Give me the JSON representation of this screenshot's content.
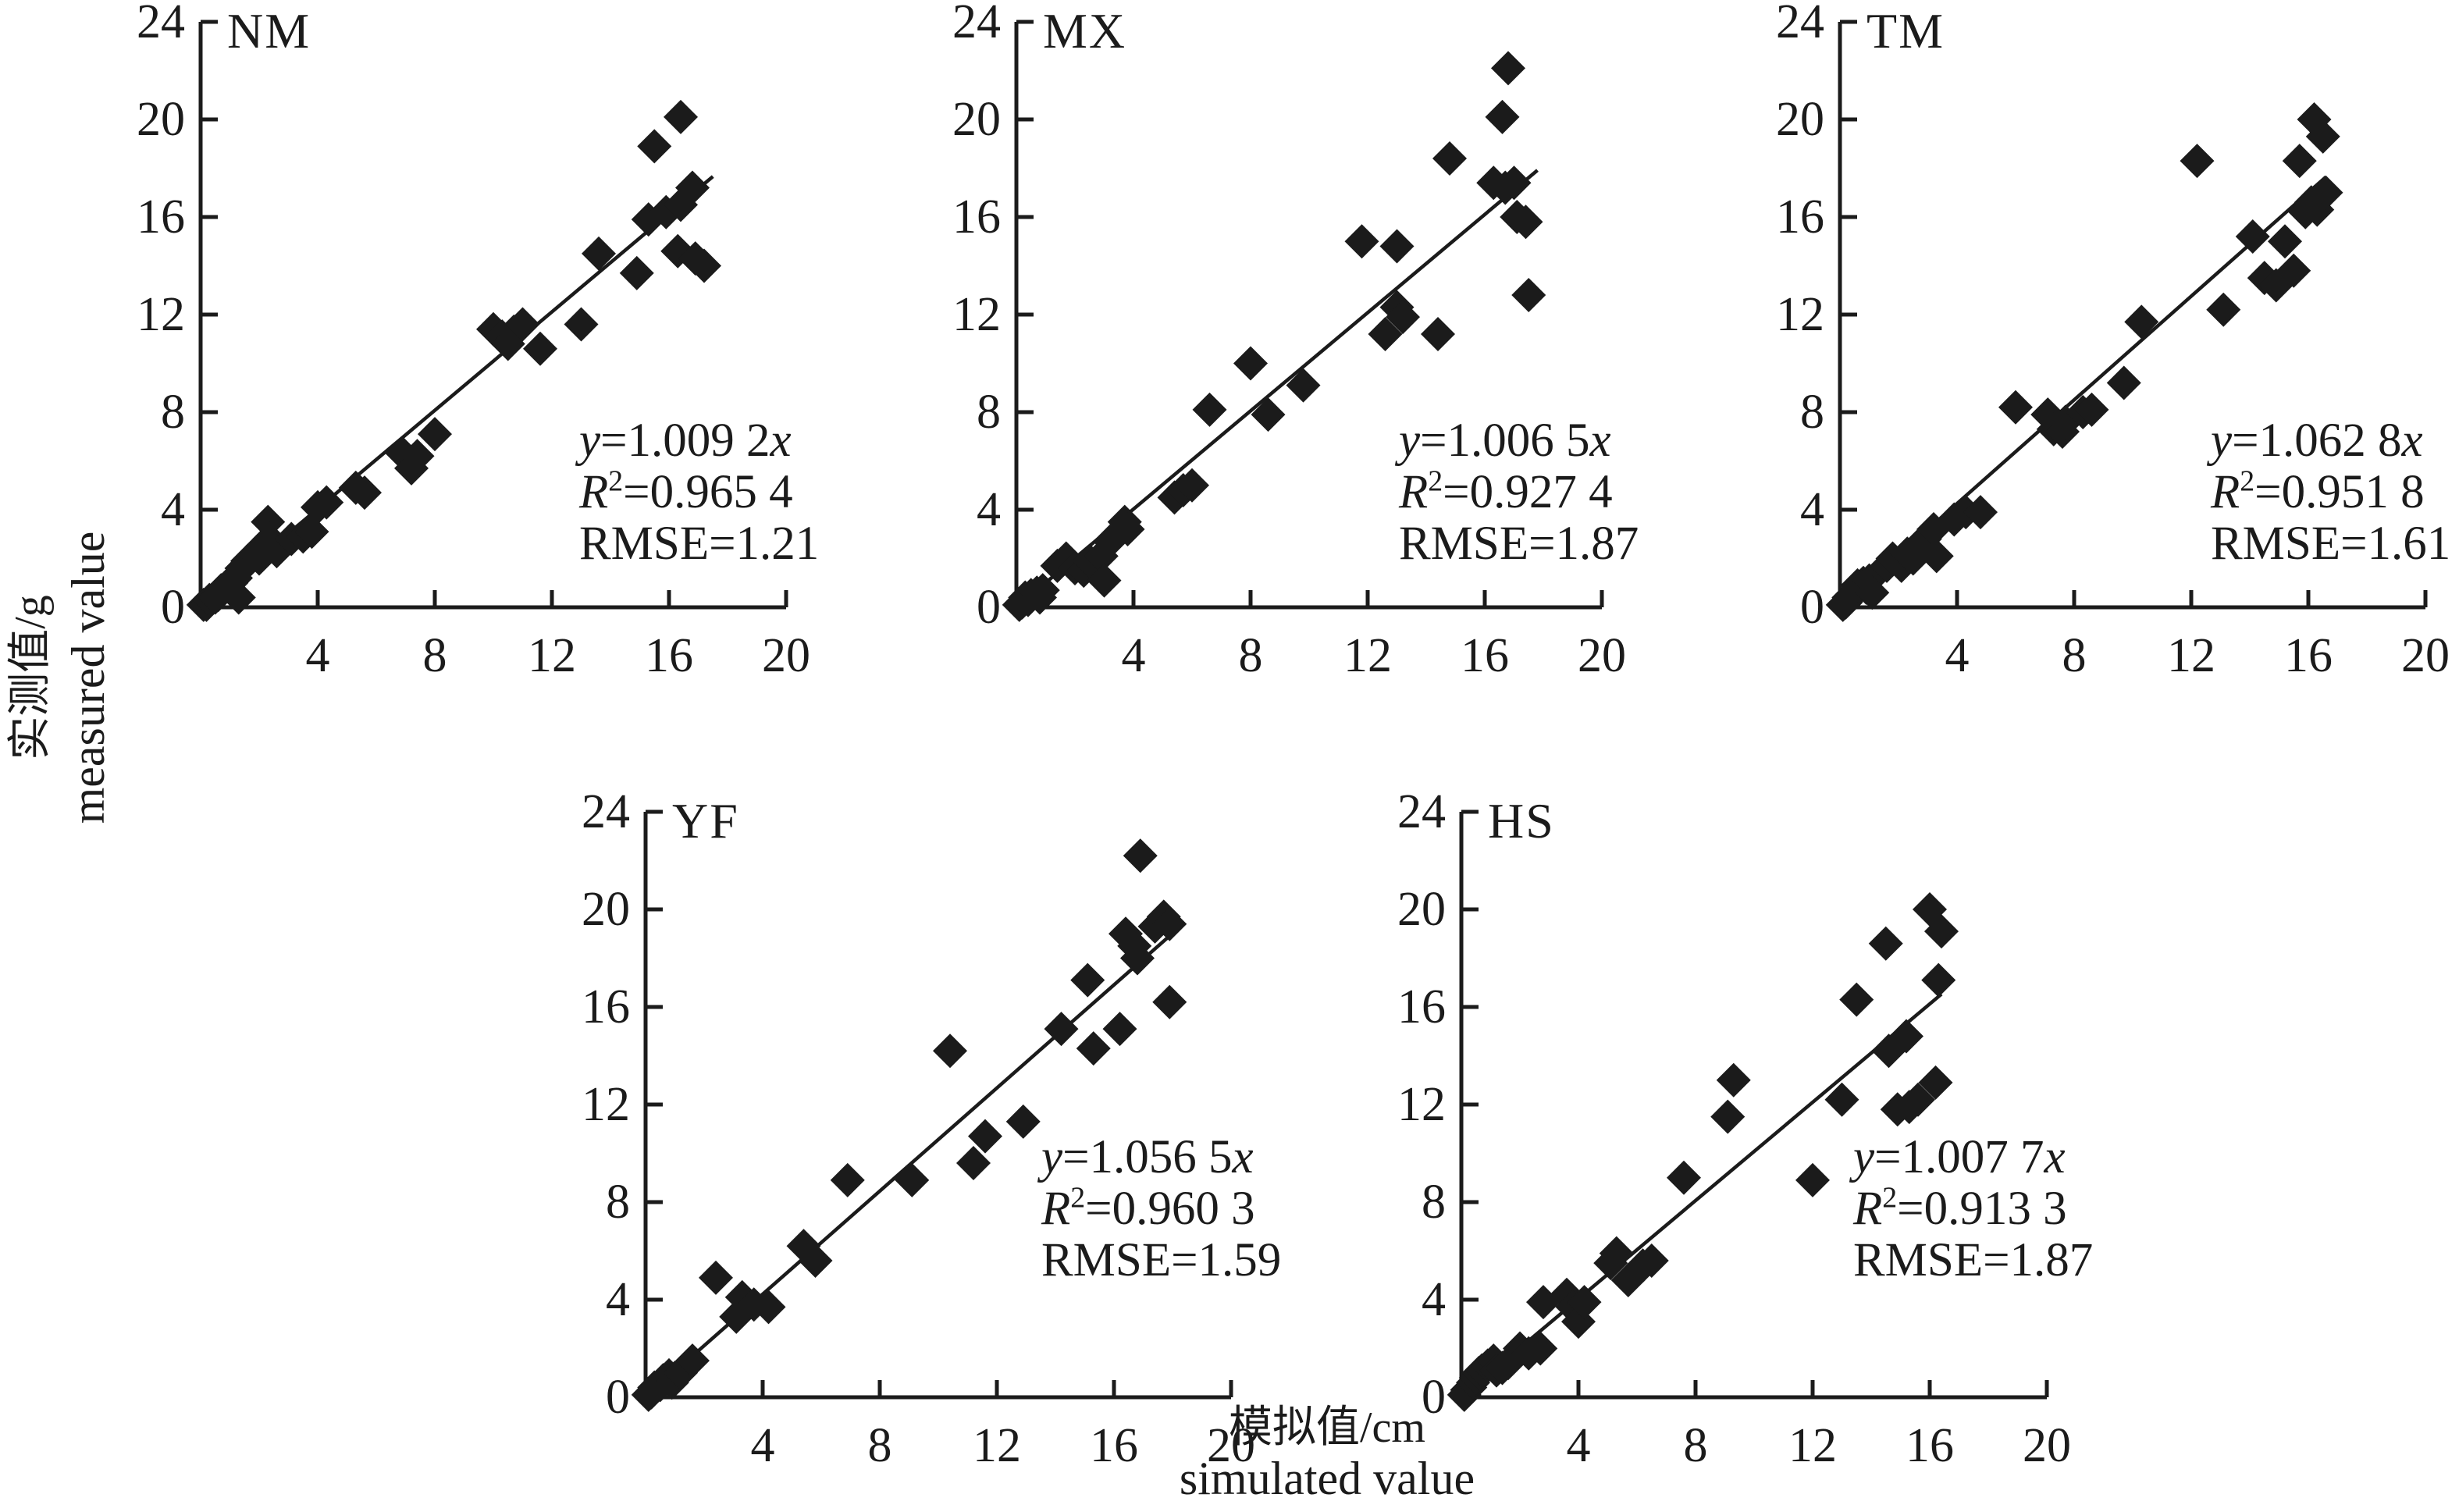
{
  "figure": {
    "ink_color": "#1b1b1b",
    "background": "#ffffff",
    "y_axis_label": {
      "cn": "实测值/g",
      "en": "measured value"
    },
    "x_axis_label": {
      "cn": "模拟值/cm",
      "en": "simulated value"
    }
  },
  "chart_data": [
    {
      "type": "scatter",
      "panel": "NM",
      "marker": "diamond",
      "xlim": [
        0,
        20
      ],
      "ylim": [
        0,
        24
      ],
      "x_ticks": [
        4,
        8,
        12,
        16,
        20
      ],
      "y_ticks": [
        0,
        4,
        8,
        12,
        16,
        20,
        24
      ],
      "fit_line": {
        "slope": 1.0092,
        "x_start": 0,
        "x_end": 17.5
      },
      "stats": {
        "eq_y": "y",
        "eq_val": "=1.009 2",
        "eq_x": "x",
        "R": "R",
        "R_sup": "2",
        "R_val": "=0.965 4",
        "rmse": "RMSE=1.21"
      },
      "points": [
        [
          0.1,
          0.1
        ],
        [
          0.2,
          0.1
        ],
        [
          0.3,
          0.3
        ],
        [
          0.5,
          0.4
        ],
        [
          0.6,
          0.5
        ],
        [
          0.7,
          0.7
        ],
        [
          0.9,
          0.9
        ],
        [
          1.05,
          1.0
        ],
        [
          1.2,
          1.2
        ],
        [
          1.3,
          0.4
        ],
        [
          1.4,
          1.6
        ],
        [
          1.6,
          1.9
        ],
        [
          1.8,
          2.1
        ],
        [
          2.0,
          2.0
        ],
        [
          2.1,
          2.5
        ],
        [
          2.3,
          3.5
        ],
        [
          2.35,
          2.8
        ],
        [
          2.6,
          2.3
        ],
        [
          3.1,
          2.8
        ],
        [
          3.5,
          2.9
        ],
        [
          3.8,
          3.1
        ],
        [
          4.0,
          4.1
        ],
        [
          4.3,
          4.3
        ],
        [
          5.3,
          4.9
        ],
        [
          5.6,
          4.7
        ],
        [
          6.9,
          6.3
        ],
        [
          7.2,
          5.7
        ],
        [
          7.4,
          6.2
        ],
        [
          8.0,
          7.1
        ],
        [
          10.0,
          11.4
        ],
        [
          10.3,
          11.1
        ],
        [
          10.5,
          10.8
        ],
        [
          10.7,
          11.3
        ],
        [
          11.0,
          11.6
        ],
        [
          11.6,
          10.6
        ],
        [
          13.0,
          11.6
        ],
        [
          13.6,
          14.5
        ],
        [
          14.9,
          13.7
        ],
        [
          15.3,
          15.9
        ],
        [
          15.5,
          18.9
        ],
        [
          15.9,
          16.2
        ],
        [
          16.3,
          14.6
        ],
        [
          16.4,
          16.5
        ],
        [
          16.4,
          20.1
        ],
        [
          16.8,
          17.2
        ],
        [
          16.9,
          14.3
        ],
        [
          17.2,
          14.0
        ]
      ]
    },
    {
      "type": "scatter",
      "panel": "MX",
      "marker": "diamond",
      "xlim": [
        0,
        20
      ],
      "ylim": [
        0,
        24
      ],
      "x_ticks": [
        4,
        8,
        12,
        16,
        20
      ],
      "y_ticks": [
        0,
        4,
        8,
        12,
        16,
        20,
        24
      ],
      "fit_line": {
        "slope": 1.0065,
        "x_start": 0,
        "x_end": 17.8
      },
      "stats": {
        "eq_y": "y",
        "eq_val": "=1.006 5",
        "eq_x": "x",
        "R": "R",
        "R_sup": "2",
        "R_val": "=0.927 4",
        "rmse": "RMSE=1.87"
      },
      "points": [
        [
          0.1,
          0.1
        ],
        [
          0.2,
          0.2
        ],
        [
          0.3,
          0.4
        ],
        [
          0.4,
          0.3
        ],
        [
          0.5,
          0.5
        ],
        [
          0.7,
          0.6
        ],
        [
          0.8,
          0.4
        ],
        [
          0.9,
          0.7
        ],
        [
          1.4,
          1.7
        ],
        [
          1.7,
          2.0
        ],
        [
          2.0,
          1.6
        ],
        [
          2.3,
          1.5
        ],
        [
          2.5,
          1.9
        ],
        [
          2.9,
          2.1
        ],
        [
          3.0,
          1.1
        ],
        [
          3.2,
          2.7
        ],
        [
          3.7,
          3.5
        ],
        [
          3.8,
          3.2
        ],
        [
          5.4,
          4.5
        ],
        [
          5.7,
          4.8
        ],
        [
          6.0,
          5.0
        ],
        [
          6.6,
          8.1
        ],
        [
          8.0,
          10.0
        ],
        [
          8.6,
          7.9
        ],
        [
          9.8,
          9.1
        ],
        [
          11.8,
          15.0
        ],
        [
          13.0,
          14.8
        ],
        [
          12.6,
          11.2
        ],
        [
          13.0,
          12.3
        ],
        [
          13.2,
          11.9
        ],
        [
          14.4,
          11.2
        ],
        [
          14.8,
          18.4
        ],
        [
          16.8,
          22.1
        ],
        [
          16.6,
          20.1
        ],
        [
          16.3,
          17.4
        ],
        [
          16.7,
          17.2
        ],
        [
          17.0,
          17.4
        ],
        [
          17.1,
          16.0
        ],
        [
          17.4,
          15.8
        ],
        [
          17.5,
          12.8
        ]
      ]
    },
    {
      "type": "scatter",
      "panel": "TM",
      "marker": "diamond",
      "xlim": [
        0,
        20
      ],
      "ylim": [
        0,
        24
      ],
      "x_ticks": [
        4,
        8,
        12,
        16,
        20
      ],
      "y_ticks": [
        0,
        4,
        8,
        12,
        16,
        20,
        24
      ],
      "fit_line": {
        "slope": 1.0628,
        "x_start": 0,
        "x_end": 16.6
      },
      "stats": {
        "eq_y": "y",
        "eq_val": "=1.062 8",
        "eq_x": "x",
        "R": "R",
        "R_sup": "2",
        "R_val": "=0.951 8",
        "rmse": "RMSE=1.61"
      },
      "points": [
        [
          0.1,
          0.1
        ],
        [
          0.2,
          0.2
        ],
        [
          0.3,
          0.4
        ],
        [
          0.5,
          0.6
        ],
        [
          0.6,
          0.9
        ],
        [
          0.8,
          1.0
        ],
        [
          0.9,
          0.8
        ],
        [
          1.0,
          1.1
        ],
        [
          1.1,
          0.6
        ],
        [
          1.6,
          1.7
        ],
        [
          1.8,
          2.0
        ],
        [
          2.1,
          1.7
        ],
        [
          2.3,
          2.2
        ],
        [
          2.5,
          2.0
        ],
        [
          2.8,
          2.5
        ],
        [
          2.9,
          2.8
        ],
        [
          3.2,
          3.2
        ],
        [
          3.3,
          2.1
        ],
        [
          3.9,
          3.6
        ],
        [
          4.3,
          3.9
        ],
        [
          4.8,
          3.9
        ],
        [
          6.0,
          8.2
        ],
        [
          7.1,
          7.9
        ],
        [
          7.3,
          7.3
        ],
        [
          7.6,
          7.2
        ],
        [
          7.7,
          7.6
        ],
        [
          8.3,
          8.0
        ],
        [
          8.6,
          8.1
        ],
        [
          9.7,
          9.2
        ],
        [
          10.3,
          11.7
        ],
        [
          12.2,
          18.3
        ],
        [
          13.1,
          12.2
        ],
        [
          14.1,
          15.2
        ],
        [
          14.5,
          13.5
        ],
        [
          14.9,
          13.2
        ],
        [
          15.2,
          15.0
        ],
        [
          15.5,
          13.8
        ],
        [
          15.7,
          18.3
        ],
        [
          15.9,
          16.2
        ],
        [
          16.1,
          16.6
        ],
        [
          16.3,
          16.3
        ],
        [
          16.2,
          20.0
        ],
        [
          16.5,
          19.3
        ],
        [
          16.6,
          17.0
        ]
      ]
    },
    {
      "type": "scatter",
      "panel": "YF",
      "marker": "diamond",
      "xlim": [
        0,
        20
      ],
      "ylim": [
        0,
        24
      ],
      "x_ticks": [
        4,
        8,
        12,
        16,
        20
      ],
      "y_ticks": [
        0,
        4,
        8,
        12,
        16,
        20,
        24
      ],
      "fit_line": {
        "slope": 1.0565,
        "x_start": 0,
        "x_end": 18.3
      },
      "stats": {
        "eq_y": "y",
        "eq_val": "=1.056 5",
        "eq_x": "x",
        "R": "R",
        "R_sup": "2",
        "R_val": "=0.960 3",
        "rmse": "RMSE=1.59"
      },
      "points": [
        [
          0.1,
          0.1
        ],
        [
          0.2,
          0.2
        ],
        [
          0.3,
          0.4
        ],
        [
          0.5,
          0.5
        ],
        [
          0.6,
          0.7
        ],
        [
          0.8,
          0.9
        ],
        [
          0.9,
          0.6
        ],
        [
          1.0,
          0.8
        ],
        [
          1.2,
          1.0
        ],
        [
          1.6,
          1.5
        ],
        [
          2.4,
          4.9
        ],
        [
          3.1,
          3.3
        ],
        [
          3.3,
          4.1
        ],
        [
          3.7,
          3.8
        ],
        [
          4.2,
          3.7
        ],
        [
          5.4,
          6.2
        ],
        [
          5.8,
          5.6
        ],
        [
          6.9,
          8.9
        ],
        [
          9.1,
          8.9
        ],
        [
          10.4,
          14.2
        ],
        [
          11.2,
          9.6
        ],
        [
          11.6,
          10.7
        ],
        [
          12.9,
          11.3
        ],
        [
          14.2,
          15.1
        ],
        [
          15.1,
          17.1
        ],
        [
          15.3,
          14.3
        ],
        [
          16.2,
          15.1
        ],
        [
          16.4,
          19.0
        ],
        [
          16.7,
          18.5
        ],
        [
          16.8,
          18.0
        ],
        [
          17.4,
          19.3
        ],
        [
          17.7,
          19.7
        ],
        [
          17.9,
          19.4
        ],
        [
          16.9,
          22.2
        ],
        [
          17.9,
          16.2
        ]
      ]
    },
    {
      "type": "scatter",
      "panel": "HS",
      "marker": "diamond",
      "xlim": [
        0,
        20
      ],
      "ylim": [
        0,
        24
      ],
      "x_ticks": [
        4,
        8,
        12,
        16,
        20
      ],
      "y_ticks": [
        0,
        4,
        8,
        12,
        16,
        20,
        24
      ],
      "fit_line": {
        "slope": 1.0077,
        "x_start": 0,
        "x_end": 16.4
      },
      "stats": {
        "eq_y": "y",
        "eq_val": "=1.007 7",
        "eq_x": "x",
        "R": "R",
        "R_sup": "2",
        "R_val": "=0.913 3",
        "rmse": "RMSE=1.87"
      },
      "points": [
        [
          0.1,
          0.1
        ],
        [
          0.2,
          0.3
        ],
        [
          0.3,
          0.4
        ],
        [
          0.4,
          0.6
        ],
        [
          0.5,
          0.8
        ],
        [
          0.6,
          1.0
        ],
        [
          0.7,
          1.1
        ],
        [
          0.9,
          1.3
        ],
        [
          1.1,
          1.5
        ],
        [
          1.2,
          1.1
        ],
        [
          1.4,
          1.2
        ],
        [
          1.6,
          1.4
        ],
        [
          2.0,
          2.0
        ],
        [
          2.3,
          1.8
        ],
        [
          2.7,
          2.0
        ],
        [
          2.8,
          3.9
        ],
        [
          3.6,
          4.2
        ],
        [
          3.8,
          3.7
        ],
        [
          4.0,
          3.1
        ],
        [
          4.2,
          3.9
        ],
        [
          5.1,
          5.5
        ],
        [
          5.3,
          5.9
        ],
        [
          5.7,
          4.8
        ],
        [
          6.2,
          5.4
        ],
        [
          6.5,
          5.6
        ],
        [
          7.6,
          9.0
        ],
        [
          9.1,
          11.5
        ],
        [
          9.3,
          13.0
        ],
        [
          12.0,
          8.9
        ],
        [
          13.0,
          12.2
        ],
        [
          13.5,
          16.3
        ],
        [
          14.5,
          18.6
        ],
        [
          14.6,
          14.2
        ],
        [
          15.2,
          14.8
        ],
        [
          14.9,
          11.8
        ],
        [
          15.3,
          11.9
        ],
        [
          15.6,
          12.2
        ],
        [
          16.2,
          12.9
        ],
        [
          16.0,
          20.0
        ],
        [
          16.4,
          19.1
        ],
        [
          16.3,
          17.1
        ]
      ]
    }
  ]
}
